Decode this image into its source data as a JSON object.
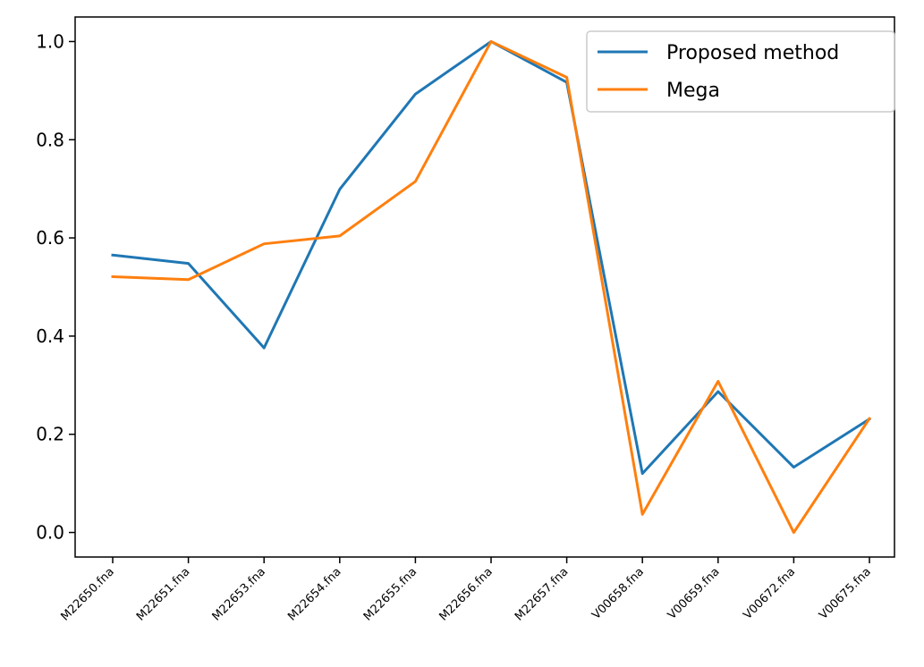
{
  "chart_data": {
    "type": "line",
    "categories": [
      "M22650.fna",
      "M22651.fna",
      "M22653.fna",
      "M22654.fna",
      "M22655.fna",
      "M22656.fna",
      "M22657.fna",
      "V00658.fna",
      "V00659.fna",
      "V00672.fna",
      "V00675.fna"
    ],
    "series": [
      {
        "name": "Proposed method",
        "color": "#1f77b4",
        "values": [
          0.565,
          0.548,
          0.376,
          0.699,
          0.893,
          1.0,
          0.917,
          0.12,
          0.287,
          0.133,
          0.231
        ]
      },
      {
        "name": "Mega",
        "color": "#ff7f0e",
        "values": [
          0.521,
          0.515,
          0.588,
          0.604,
          0.715,
          1.0,
          0.927,
          0.037,
          0.308,
          0.0,
          0.232
        ]
      }
    ],
    "yticks": [
      "0.0",
      "0.2",
      "0.4",
      "0.6",
      "0.8",
      "1.0"
    ],
    "ylim": [
      -0.05,
      1.05
    ],
    "grid": false,
    "legend_position": "top-right",
    "title": "",
    "xlabel": "",
    "ylabel": ""
  }
}
